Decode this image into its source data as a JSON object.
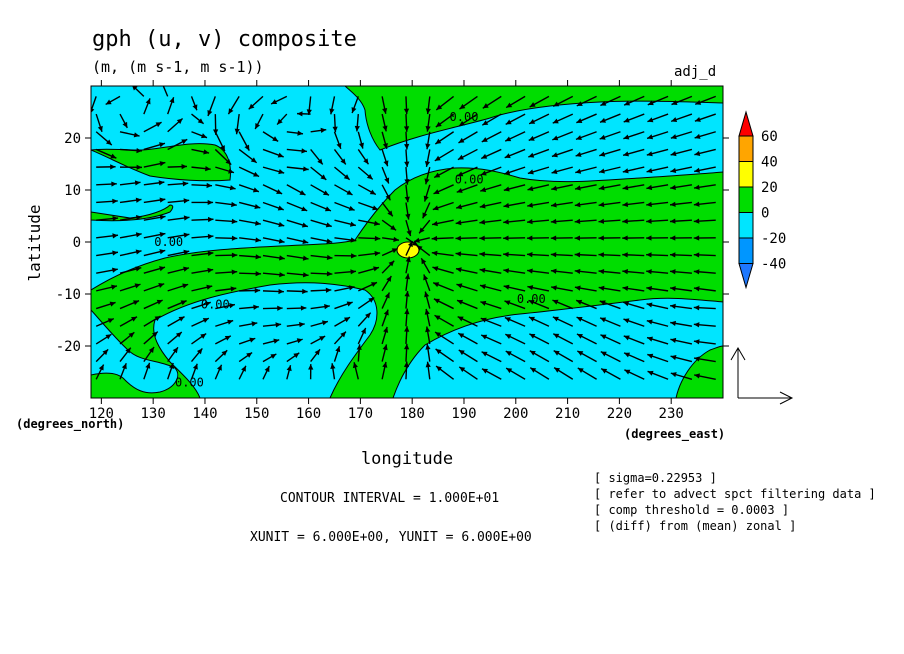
{
  "chart_data": {
    "type": "contour-vector",
    "title": "gph (u, v) composite",
    "units": "(m, (m s-1, m s-1))",
    "corner_label": "adj_d",
    "xlabel": "longitude",
    "ylabel": "latitude",
    "x_unit_label": "(degrees_east)",
    "y_unit_label": "(degrees_north)",
    "xlim": [
      118,
      240
    ],
    "ylim": [
      -30,
      30
    ],
    "x_ticks": [
      120,
      130,
      140,
      150,
      160,
      170,
      180,
      190,
      200,
      210,
      220,
      230
    ],
    "y_ticks": [
      20,
      10,
      0,
      -10,
      -20
    ],
    "contour_labels": [
      {
        "text": "0.00",
        "lon": 133,
        "lat": 0
      },
      {
        "text": "0.00",
        "lon": 191,
        "lat": 12
      },
      {
        "text": "0.00",
        "lon": 203,
        "lat": -11
      },
      {
        "text": "0.00",
        "lon": 142,
        "lat": -12
      },
      {
        "text": "0.00",
        "lon": 137,
        "lat": -27
      },
      {
        "text": "0.00",
        "lon": 190,
        "lat": 24
      }
    ],
    "colorbar": {
      "levels": [
        "60",
        "40",
        "20",
        "0",
        "-20",
        "-40"
      ],
      "colors": [
        "#ff0000",
        "#ffa500",
        "#ffff00",
        "#00dd00",
        "#00e5ff",
        "#0096ff",
        "#1e78ff"
      ]
    },
    "contour_interval_text": "CONTOUR INTERVAL = 1.000E+01",
    "vector_unit_text": "XUNIT = 6.000E+00, YUNIT = 6.000E+00",
    "notes": [
      "[ sigma=0.22953 ]",
      "[ refer to advect spct filtering data ]",
      "[ comp threshold = 0.0003 ]",
      "[ (diff) from (mean) zonal ]"
    ],
    "field_colors": {
      "positive": "#00dd00",
      "negative": "#00e5ff",
      "high": "#ffff00"
    }
  }
}
